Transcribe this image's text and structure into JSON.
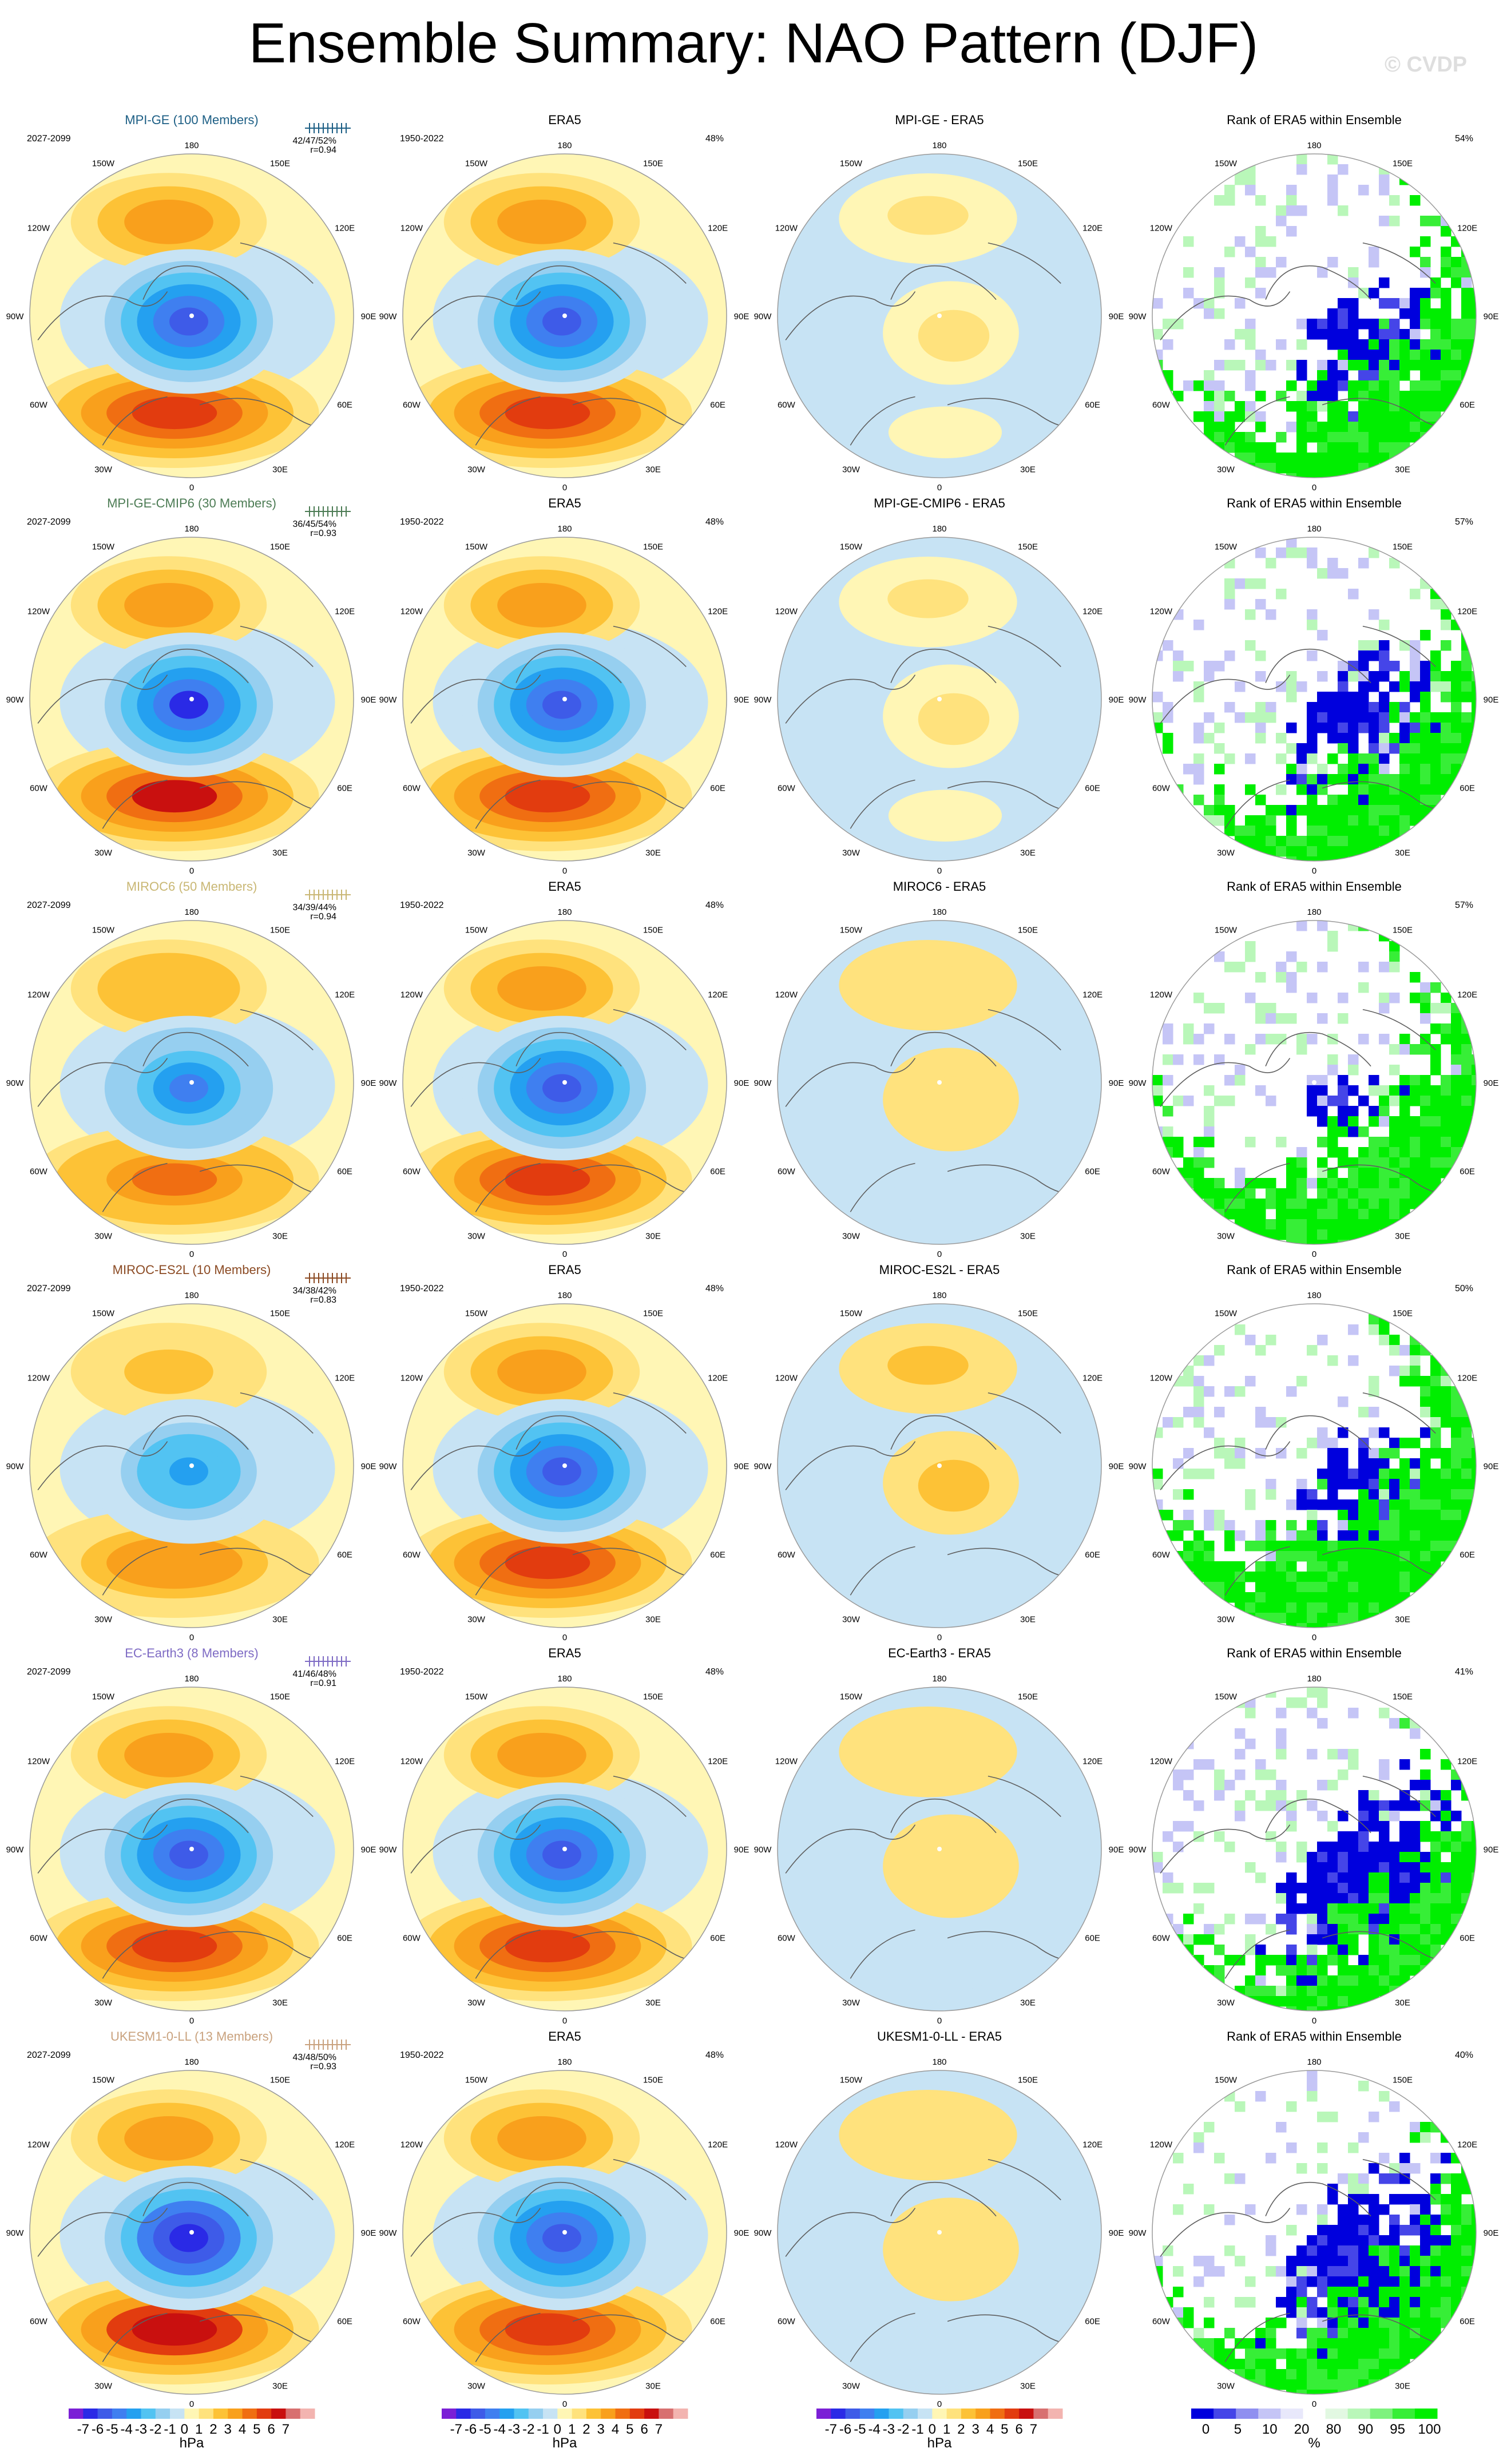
{
  "page": {
    "title": "Ensemble Summary: NAO Pattern (DJF)",
    "watermark": "© CVDP"
  },
  "colors": {
    "land_outline": "#5f5f5f",
    "map_border": "#9a9a9a",
    "hpa_scale": [
      "#7b1fd6",
      "#2a2ae6",
      "#3e5be8",
      "#3f7ff0",
      "#24a0f0",
      "#52c3f2",
      "#96cff0",
      "#c7e3f4",
      "#fff6b5",
      "#ffe27d",
      "#fdc236",
      "#f9a01c",
      "#f06e12",
      "#e23c0f",
      "#c9100f",
      "#d87070",
      "#f3b4b0"
    ],
    "pct_scale": [
      "#0000dd",
      "#4545e8",
      "#8f8ff0",
      "#c5c5f6",
      "#e8e8fb",
      "#ffffff",
      "#e2f8e2",
      "#b9f7b9",
      "#7ef27e",
      "#37ee37",
      "#00ee00"
    ]
  },
  "chart_data": {
    "type": "map",
    "title": "Ensemble Summary: NAO Pattern (DJF)",
    "projection": "north-polar-stereographic",
    "columns": [
      "model",
      "ERA5",
      "model - ERA5",
      "Rank of ERA5 within Ensemble"
    ],
    "lon_labels": [
      "180",
      "150E",
      "120E",
      "90E",
      "60E",
      "30E",
      "0",
      "30W",
      "60W",
      "90W",
      "120W",
      "150W"
    ],
    "colorbars": [
      {
        "ticks": [
          "-7",
          "-6",
          "-5",
          "-4",
          "-3",
          "-2",
          "-1",
          "0",
          "1",
          "2",
          "3",
          "4",
          "5",
          "6",
          "7"
        ],
        "unit": "hPa"
      },
      {
        "ticks": [
          "-7",
          "-6",
          "-5",
          "-4",
          "-3",
          "-2",
          "-1",
          "0",
          "1",
          "2",
          "3",
          "4",
          "5",
          "6",
          "7"
        ],
        "unit": "hPa"
      },
      {
        "ticks": [
          "-7",
          "-6",
          "-5",
          "-4",
          "-3",
          "-2",
          "-1",
          "0",
          "1",
          "2",
          "3",
          "4",
          "5",
          "6",
          "7"
        ],
        "unit": "hPa"
      },
      {
        "ticks": [
          "0",
          "5",
          "10",
          "20",
          "80",
          "90",
          "95",
          "100"
        ],
        "unit": "%"
      }
    ],
    "rows": [
      {
        "model": "MPI-GE (100 Members)",
        "model_color": "#1d5f85",
        "model_period": "2027-2099",
        "stats": "42/47/52%",
        "r": "r=0.94",
        "panel1_pct": "",
        "era5_period": "1950-2022",
        "era5_pct": "48%",
        "diff_title": "MPI-GE - ERA5",
        "rank_title": "Rank of ERA5 within Ensemble",
        "rank_pct": "54%",
        "model_strength": 1.0,
        "diff_strength": 0.35,
        "diff_sign": 1,
        "rank_fill": {
          "blue": 0.32,
          "green": 0.4
        }
      },
      {
        "model": "MPI-GE-CMIP6 (30 Members)",
        "model_color": "#4d7c55",
        "model_period": "2027-2099",
        "stats": "36/45/54%",
        "r": "r=0.93",
        "panel1_pct": "",
        "era5_period": "1950-2022",
        "era5_pct": "48%",
        "diff_title": "MPI-GE-CMIP6 - ERA5",
        "rank_title": "Rank of ERA5 within Ensemble",
        "rank_pct": "57%",
        "model_strength": 1.1,
        "diff_strength": 0.3,
        "diff_sign": 1,
        "rank_fill": {
          "blue": 0.35,
          "green": 0.38
        }
      },
      {
        "model": "MIROC6 (50 Members)",
        "model_color": "#c9b774",
        "model_period": "2027-2099",
        "stats": "34/39/44%",
        "r": "r=0.94",
        "panel1_pct": "",
        "era5_period": "1950-2022",
        "era5_pct": "48%",
        "diff_title": "MIROC6 - ERA5",
        "rank_title": "Rank of ERA5 within Ensemble",
        "rank_pct": "57%",
        "model_strength": 0.8,
        "diff_strength": 0.45,
        "diff_sign": 1,
        "rank_fill": {
          "blue": 0.2,
          "green": 0.45
        }
      },
      {
        "model": "MIROC-ES2L (10 Members)",
        "model_color": "#8b4a23",
        "model_period": "2027-2099",
        "stats": "34/38/42%",
        "r": "r=0.83",
        "panel1_pct": "",
        "era5_period": "1950-2022",
        "era5_pct": "48%",
        "diff_title": "MIROC-ES2L - ERA5",
        "rank_title": "Rank of ERA5 within Ensemble",
        "rank_pct": "50%",
        "model_strength": 0.65,
        "diff_strength": 0.8,
        "diff_sign": 1,
        "rank_fill": {
          "blue": 0.3,
          "green": 0.5
        }
      },
      {
        "model": "EC-Earth3 (8 Members)",
        "model_color": "#7e6bc4",
        "model_period": "2027-2099",
        "stats": "41/46/48%",
        "r": "r=0.91",
        "panel1_pct": "",
        "era5_period": "1950-2022",
        "era5_pct": "48%",
        "diff_title": "EC-Earth3 - ERA5",
        "rank_title": "Rank of ERA5 within Ensemble",
        "rank_pct": "41%",
        "model_strength": 0.95,
        "diff_strength": 0.45,
        "diff_sign": 1,
        "rank_fill": {
          "blue": 0.45,
          "green": 0.35
        }
      },
      {
        "model": "UKESM1-0-LL (13 Members)",
        "model_color": "#c9a27e",
        "model_period": "2027-2099",
        "stats": "43/48/50%",
        "r": "r=0.93",
        "panel1_pct": "",
        "era5_period": "1950-2022",
        "era5_pct": "48%",
        "diff_title": "UKESM1-0-LL - ERA5",
        "rank_title": "Rank of ERA5 within Ensemble",
        "rank_pct": "40%",
        "model_strength": 1.15,
        "diff_strength": 0.4,
        "diff_sign": 1,
        "rank_fill": {
          "blue": 0.45,
          "green": 0.38
        }
      }
    ]
  }
}
